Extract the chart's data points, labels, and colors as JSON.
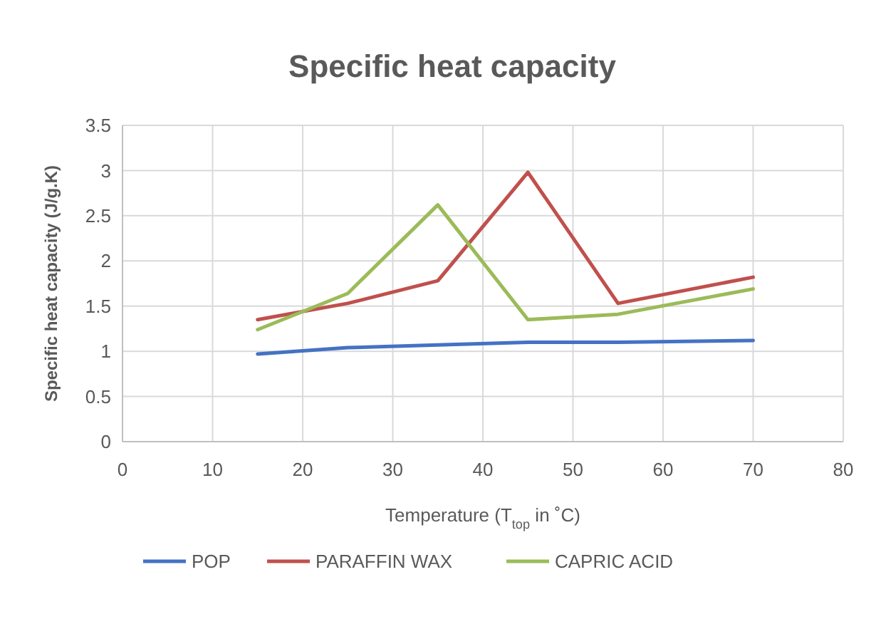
{
  "chart_data": {
    "type": "line",
    "title": "Specific heat capacity",
    "xlabel": "Temperature (T$_{top}$ in ˚C)",
    "ylabel": "Specific heat capacity (J/g.K)",
    "x": [
      15,
      25,
      35,
      45,
      55,
      70
    ],
    "series": [
      {
        "name": "POP",
        "color": "#4472c4",
        "values": [
          0.97,
          1.04,
          1.07,
          1.1,
          1.1,
          1.12
        ]
      },
      {
        "name": "PARAFFIN WAX",
        "color": "#c0504d",
        "values": [
          1.35,
          1.53,
          1.78,
          2.98,
          1.53,
          1.82
        ]
      },
      {
        "name": "CAPRIC ACID",
        "color": "#9bbb59",
        "values": [
          1.24,
          1.64,
          2.62,
          1.35,
          1.41,
          1.69
        ]
      }
    ],
    "xlim": [
      0,
      80
    ],
    "xticks": [
      0,
      10,
      20,
      30,
      40,
      50,
      60,
      70,
      80
    ],
    "ylim": [
      0,
      3.5
    ],
    "yticks": [
      0,
      0.5,
      1,
      1.5,
      2,
      2.5,
      3,
      3.5
    ],
    "grid": true,
    "legend": "bottom",
    "marker": "none",
    "line_style": "solid"
  }
}
